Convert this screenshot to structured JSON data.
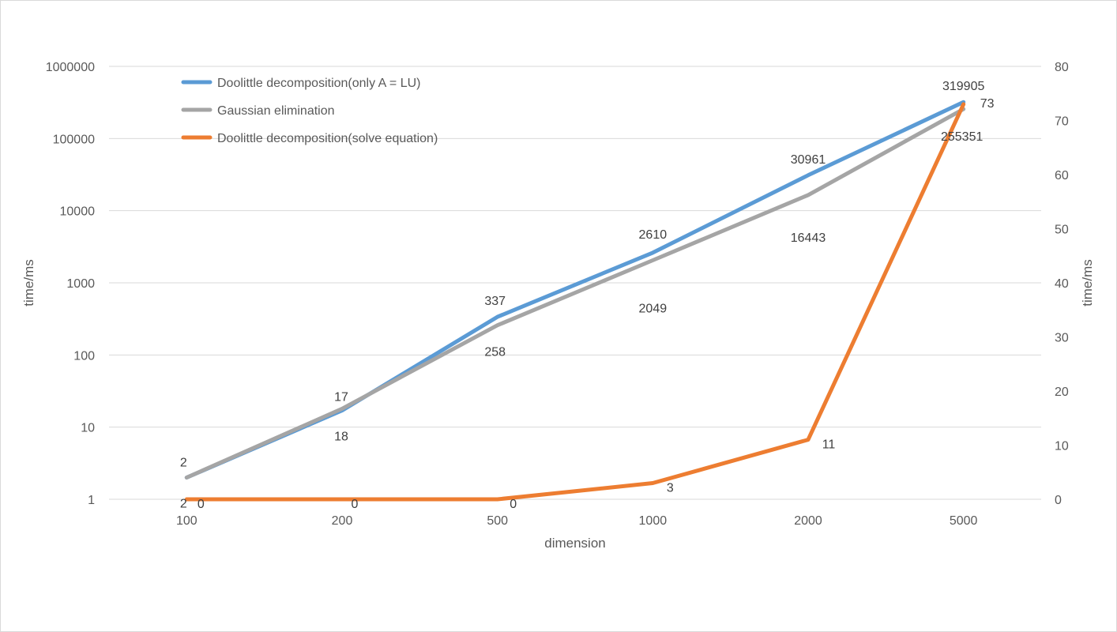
{
  "chart_data": {
    "type": "line",
    "categories": [
      "100",
      "200",
      "500",
      "1000",
      "2000",
      "5000"
    ],
    "xlabel": "dimension",
    "ylabel_left": "time/ms",
    "ylabel_right": "time/ms",
    "y_left": {
      "scale": "log",
      "ylim": [
        1,
        1000000
      ],
      "ticks": [
        1,
        10,
        100,
        1000,
        10000,
        100000,
        1000000
      ],
      "tick_labels": [
        "1",
        "10",
        "100",
        "1000",
        "10000",
        "100000",
        "1000000"
      ]
    },
    "y_right": {
      "scale": "linear",
      "ylim": [
        0,
        80
      ],
      "ticks": [
        0,
        10,
        20,
        30,
        40,
        50,
        60,
        70,
        80
      ],
      "tick_labels": [
        "0",
        "10",
        "20",
        "30",
        "40",
        "50",
        "60",
        "70",
        "80"
      ]
    },
    "grid": true,
    "legend_position": "top-left",
    "series": [
      {
        "name": "Doolittle decomposition(only A = LU)",
        "axis": "left",
        "color": "#5b9bd5",
        "values": [
          2,
          17,
          337,
          2610,
          30961,
          319905
        ],
        "labels": [
          "2",
          "17",
          "337",
          "2610",
          "30961",
          "319905"
        ]
      },
      {
        "name": "Gaussian elimination",
        "axis": "left",
        "color": "#a5a5a5",
        "values": [
          2,
          18,
          258,
          2049,
          16443,
          255351
        ],
        "labels": [
          "2",
          "18",
          "258",
          "2049",
          "16443",
          "255351"
        ]
      },
      {
        "name": "Doolittle decomposition(solve equation)",
        "axis": "right",
        "color": "#ed7d31",
        "values": [
          0,
          0,
          0,
          3,
          11,
          73
        ],
        "labels": [
          "0",
          "0",
          "0",
          "3",
          "11",
          "73"
        ]
      }
    ]
  }
}
